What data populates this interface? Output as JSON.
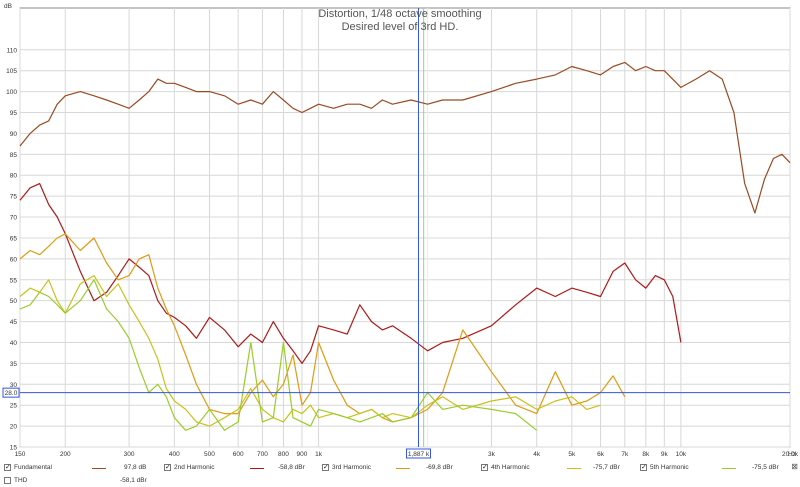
{
  "chart_data": {
    "type": "line",
    "title": "Distortion, 1/48 octave smoothing",
    "subtitle": "Desired level of 3rd HD.",
    "xlabel": "Hz",
    "ylabel": "dB",
    "x_scale": "log",
    "xlim": [
      150,
      20000
    ],
    "ylim": [
      15,
      120
    ],
    "grid": true,
    "x_ticks": [
      150,
      200,
      300,
      400,
      500,
      600,
      700,
      800,
      900,
      1000,
      3000,
      4000,
      5000,
      6000,
      7000,
      8000,
      9000,
      10000,
      20000
    ],
    "x_tick_labels": [
      "150",
      "200",
      "300",
      "400",
      "500",
      "600",
      "700",
      "800",
      "900",
      "1k",
      "3k",
      "4k",
      "5k",
      "6k",
      "7k",
      "8k",
      "9k",
      "10k",
      "20.0k"
    ],
    "y_ticks": [
      15,
      20,
      25,
      30,
      35,
      40,
      45,
      50,
      55,
      60,
      65,
      70,
      75,
      80,
      85,
      90,
      95,
      100,
      105,
      110
    ],
    "cursor": {
      "x": 1887,
      "y": 28,
      "x_label": "1,887 k",
      "y_label": "28.0"
    },
    "marker_x": 1950,
    "series": [
      {
        "name": "Fundamental",
        "color": "#9a4a22",
        "x": [
          150,
          160,
          170,
          180,
          190,
          200,
          220,
          240,
          260,
          280,
          300,
          320,
          340,
          360,
          380,
          400,
          430,
          460,
          500,
          550,
          600,
          650,
          700,
          750,
          800,
          850,
          900,
          950,
          1000,
          1100,
          1200,
          1300,
          1400,
          1500,
          1600,
          1800,
          2000,
          2200,
          2500,
          3000,
          3500,
          4000,
          4500,
          5000,
          5500,
          6000,
          6500,
          7000,
          7500,
          8000,
          8500,
          9000,
          10000,
          11000,
          12000,
          13000,
          14000,
          15000,
          16000,
          17000,
          18000,
          19000,
          20000
        ],
        "y": [
          87,
          90,
          92,
          93,
          97,
          99,
          100,
          99,
          98,
          97,
          96,
          98,
          100,
          103,
          102,
          102,
          101,
          100,
          100,
          99,
          97,
          98,
          97,
          100,
          98,
          96,
          95,
          96,
          97,
          96,
          97,
          97,
          96,
          98,
          97,
          98,
          97,
          98,
          98,
          100,
          102,
          103,
          104,
          106,
          105,
          104,
          106,
          107,
          105,
          106,
          105,
          105,
          101,
          103,
          105,
          103,
          95,
          78,
          71,
          79,
          84,
          85,
          83
        ]
      },
      {
        "name": "2nd Harmonic",
        "value": "-58,8 dBr",
        "color": "#b01818",
        "x": [
          150,
          160,
          170,
          180,
          190,
          200,
          220,
          240,
          260,
          280,
          300,
          320,
          340,
          360,
          380,
          400,
          430,
          460,
          500,
          550,
          600,
          650,
          700,
          750,
          800,
          850,
          900,
          950,
          1000,
          1100,
          1200,
          1300,
          1400,
          1500,
          1600,
          1800,
          2000,
          2200,
          2500,
          3000,
          3500,
          4000,
          4500,
          5000,
          5500,
          6000,
          6500,
          7000,
          7500,
          8000,
          8500,
          9000,
          9500,
          10000
        ],
        "y": [
          74,
          77,
          78,
          73,
          70,
          66,
          57,
          50,
          52,
          56,
          60,
          58,
          56,
          50,
          47,
          46,
          44,
          41,
          46,
          43,
          39,
          42,
          40,
          45,
          41,
          38,
          35,
          38,
          44,
          43,
          42,
          49,
          45,
          43,
          44,
          41,
          38,
          40,
          41,
          44,
          49,
          53,
          51,
          53,
          52,
          51,
          57,
          59,
          55,
          53,
          56,
          55,
          51,
          40
        ]
      },
      {
        "name": "3rd Harmonic",
        "value": "-69,8 dBr",
        "color": "#e29a10",
        "x": [
          150,
          160,
          170,
          180,
          190,
          200,
          220,
          240,
          260,
          280,
          300,
          320,
          340,
          360,
          380,
          400,
          430,
          460,
          500,
          550,
          600,
          650,
          700,
          750,
          800,
          850,
          900,
          950,
          1000,
          1100,
          1200,
          1300,
          1400,
          1500,
          1600,
          1800,
          2000,
          2200,
          2500,
          3000,
          3500,
          4000,
          4500,
          5000,
          5500,
          6000,
          6500,
          7000
        ],
        "y": [
          60,
          62,
          61,
          63,
          65,
          66,
          62,
          65,
          59,
          55,
          56,
          60,
          61,
          53,
          48,
          44,
          37,
          30,
          24,
          23,
          23,
          28,
          31,
          27,
          30,
          37,
          25,
          28,
          40,
          31,
          25,
          23,
          24,
          22,
          21,
          22,
          24,
          28,
          43,
          33,
          25,
          23,
          33,
          25,
          26,
          28,
          32,
          27
        ]
      },
      {
        "name": "4th Harmonic",
        "value": "-75,7 dBr",
        "color": "#c8c21c",
        "x": [
          150,
          160,
          170,
          180,
          190,
          200,
          220,
          240,
          260,
          280,
          300,
          320,
          340,
          360,
          380,
          400,
          430,
          460,
          500,
          550,
          600,
          650,
          700,
          750,
          800,
          850,
          900,
          950,
          1000,
          1100,
          1200,
          1300,
          1400,
          1500,
          1600,
          1800,
          2000,
          2200,
          2500,
          3000,
          3500,
          4000,
          4500,
          5000,
          5500,
          6000
        ],
        "y": [
          51,
          53,
          52,
          55,
          50,
          47,
          54,
          56,
          51,
          54,
          49,
          45,
          41,
          36,
          29,
          26,
          24,
          21,
          20,
          22,
          24,
          29,
          24,
          22,
          21,
          24,
          23,
          25,
          22,
          23,
          22,
          23,
          24,
          22,
          23,
          22,
          25,
          27,
          24,
          26,
          27,
          24,
          26,
          27,
          24,
          25
        ]
      },
      {
        "name": "5th Harmonic",
        "value": "-75,5 dBr",
        "color": "#9acc2a",
        "x": [
          150,
          160,
          170,
          180,
          190,
          200,
          220,
          240,
          260,
          280,
          300,
          320,
          340,
          360,
          380,
          400,
          430,
          460,
          500,
          550,
          600,
          650,
          700,
          750,
          800,
          850,
          900,
          950,
          1000,
          1100,
          1200,
          1300,
          1400,
          1500,
          1600,
          1800,
          2000,
          2200,
          2500,
          3000,
          3500,
          4000
        ],
        "y": [
          48,
          49,
          52,
          51,
          49,
          47,
          50,
          55,
          48,
          45,
          41,
          34,
          28,
          30,
          27,
          22,
          19,
          20,
          24,
          19,
          21,
          40,
          21,
          22,
          40,
          22,
          21,
          20,
          24,
          23,
          22,
          21,
          22,
          23,
          21,
          22,
          28,
          24,
          25,
          24,
          23,
          19
        ]
      }
    ]
  },
  "legend": {
    "items": [
      {
        "label": "Fundamental",
        "value": "97,8 dB",
        "color": "#9a4a22",
        "checked": true
      },
      {
        "label": "2nd Harmonic",
        "value": "-58,8 dBr",
        "color": "#b01818",
        "checked": true
      },
      {
        "label": "3rd Harmonic",
        "value": "-69,8 dBr",
        "color": "#e29a10",
        "checked": true
      },
      {
        "label": "4th Harmonic",
        "value": "-75,7 dBr",
        "color": "#c8c21c",
        "checked": true
      },
      {
        "label": "5th Harmonic",
        "value": "-75,5 dBr",
        "color": "#9acc2a",
        "checked": true
      }
    ],
    "thd": {
      "label": "THD",
      "value": "-58,1 dBr",
      "checked": false
    },
    "close_glyph": "⊠"
  }
}
